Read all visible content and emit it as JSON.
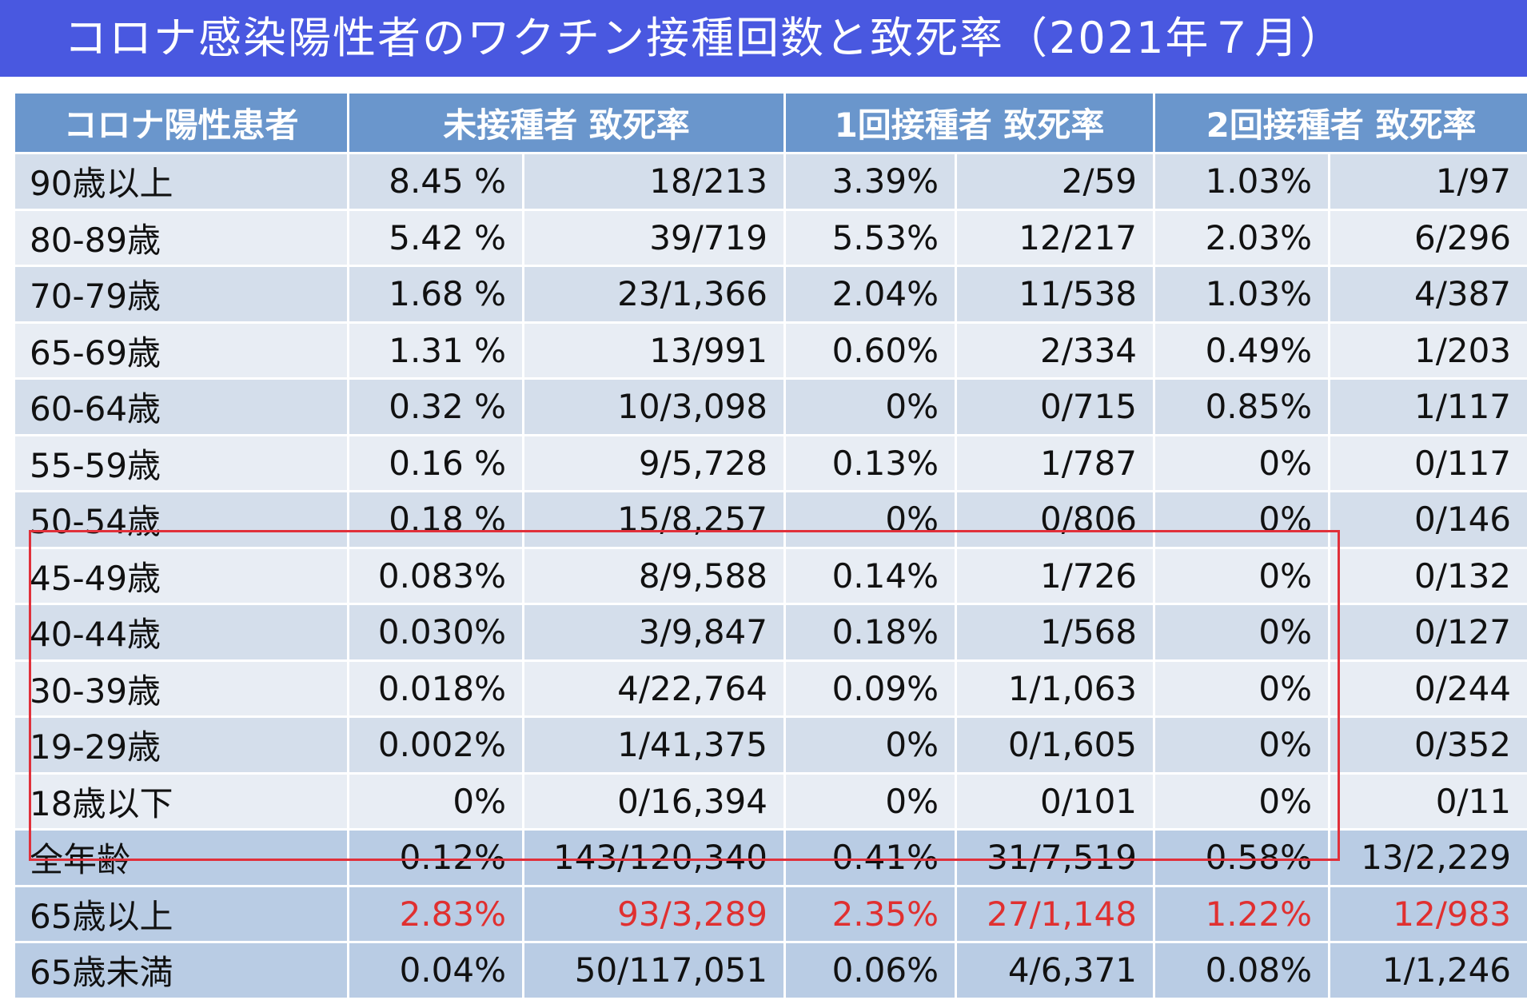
{
  "title": "コロナ感染陽性者のワクチン接種回数と致死率（2021年７月）",
  "headers": [
    "コロナ陽性患者",
    "未接種者 致死率",
    "1回接種者 致死率",
    "2回接種者 致死率"
  ],
  "rows": [
    {
      "age": "90歳以上",
      "c0": "8.45 %",
      "c1": "18/213",
      "c2": "3.39%",
      "c3": "2/59",
      "c4": "1.03%",
      "c5": "1/97"
    },
    {
      "age": "80-89歳",
      "c0": "5.42 %",
      "c1": "39/719",
      "c2": "5.53%",
      "c3": "12/217",
      "c4": "2.03%",
      "c5": "6/296"
    },
    {
      "age": "70-79歳",
      "c0": "1.68 %",
      "c1": "23/1,366",
      "c2": "2.04%",
      "c3": "11/538",
      "c4": "1.03%",
      "c5": "4/387"
    },
    {
      "age": "65-69歳",
      "c0": "1.31 %",
      "c1": "13/991",
      "c2": "0.60%",
      "c3": "2/334",
      "c4": "0.49%",
      "c5": "1/203"
    },
    {
      "age": "60-64歳",
      "c0": "0.32 %",
      "c1": "10/3,098",
      "c2": "0%",
      "c3": "0/715",
      "c4": "0.85%",
      "c5": "1/117"
    },
    {
      "age": "55-59歳",
      "c0": "0.16 %",
      "c1": "9/5,728",
      "c2": "0.13%",
      "c3": "1/787",
      "c4": "0%",
      "c5": "0/117"
    },
    {
      "age": "50-54歳",
      "c0": "0.18 %",
      "c1": "15/8,257",
      "c2": "0%",
      "c3": "0/806",
      "c4": "0%",
      "c5": "0/146"
    },
    {
      "age": "45-49歳",
      "c0": "0.083%",
      "c1": "8/9,588",
      "c2": "0.14%",
      "c3": "1/726",
      "c4": "0%",
      "c5": "0/132"
    },
    {
      "age": "40-44歳",
      "c0": "0.030%",
      "c1": "3/9,847",
      "c2": "0.18%",
      "c3": "1/568",
      "c4": "0%",
      "c5": "0/127"
    },
    {
      "age": "30-39歳",
      "c0": "0.018%",
      "c1": "4/22,764",
      "c2": "0.09%",
      "c3": "1/1,063",
      "c4": "0%",
      "c5": "0/244"
    },
    {
      "age": "19-29歳",
      "c0": "0.002%",
      "c1": "1/41,375",
      "c2": "0%",
      "c3": "0/1,605",
      "c4": "0%",
      "c5": "0/352"
    },
    {
      "age": "18歳以下",
      "c0": "0%",
      "c1": "0/16,394",
      "c2": "0%",
      "c3": "0/101",
      "c4": "0%",
      "c5": "0/11"
    },
    {
      "age": "全年齢",
      "c0": "0.12%",
      "c1": "143/120,340",
      "c2": "0.41%",
      "c3": "31/7,519",
      "c4": "0.58%",
      "c5": "13/2,229"
    },
    {
      "age": "65歳以上",
      "c0": "2.83%",
      "c1": "93/3,289",
      "c2": "2.35%",
      "c3": "27/1,148",
      "c4": "1.22%",
      "c5": "12/983"
    },
    {
      "age": "65歳未満",
      "c0": "0.04%",
      "c1": "50/117,051",
      "c2": "0.06%",
      "c3": "4/6,371",
      "c4": "0.08%",
      "c5": "1/1,246"
    }
  ],
  "colors": {
    "title_bg": "#4958e0",
    "header_bg": "#6a96cc",
    "row_dark": "#d4deeb",
    "row_light": "#e8edf4",
    "row_summary": "#b9cce4",
    "highlight_border": "#e0303a",
    "red_text": "#e03030"
  }
}
